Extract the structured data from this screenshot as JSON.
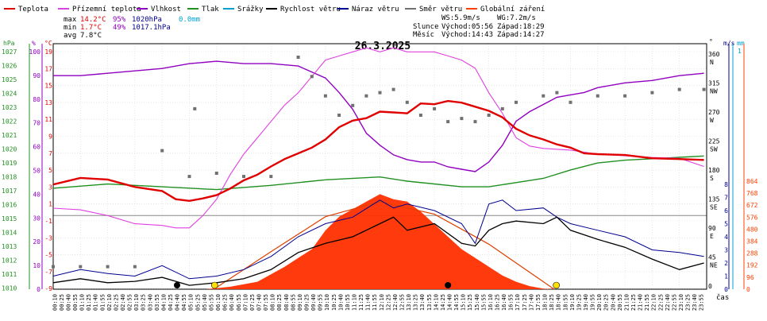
{
  "chart_data": {
    "type": "line",
    "title": "26.3.2025",
    "xlabel": "čas",
    "legend": [
      {
        "label": "Teplota",
        "color": "#e00000"
      },
      {
        "label": "Přízemní teplota",
        "color": "#e040e0"
      },
      {
        "label": "Vlhkost",
        "color": "#9000c0"
      },
      {
        "label": "Tlak",
        "color": "#209020"
      },
      {
        "label": "Srážky",
        "color": "#00a0d0"
      },
      {
        "label": "Rychlost větru",
        "color": "#000000"
      },
      {
        "label": "Náraz větru",
        "color": "#000090"
      },
      {
        "label": "Směr větru",
        "color": "#707070"
      },
      {
        "label": "Globální záření",
        "color": "#ff4000"
      }
    ],
    "stats": {
      "rows": [
        {
          "label": "max",
          "temp": "14.2°C",
          "hum": "95%",
          "press": "1020hPa",
          "rain": "0.0mm"
        },
        {
          "label": "min",
          "temp": "1.7°C",
          "hum": "49%",
          "press": "1017.1hPa",
          "rain": ""
        },
        {
          "label": "avg",
          "temp": "7.8°C",
          "hum": "",
          "press": "",
          "rain": ""
        }
      ],
      "ws": "WS:5.9m/s",
      "wg": "WG:7.2m/s",
      "sun_label": "Slunce",
      "sun_rise": "Východ:05:56",
      "sun_set": "Západ:18:29",
      "moon_label": "Měsíc",
      "moon_rise": "Východ:14:43",
      "moon_set": "Západ:14:27"
    },
    "axes_left": {
      "hpa": {
        "unit": "hPa",
        "ticks": [
          "1027",
          "1026",
          "1025",
          "1024",
          "1023",
          "1022",
          "1021",
          "1020",
          "1019",
          "1018",
          "1017",
          "1016",
          "1015",
          "1014",
          "1013",
          "1012",
          "1011",
          "1010"
        ]
      },
      "pct": {
        "unit": "%",
        "ticks": [
          "100",
          "90",
          "80",
          "70",
          "60",
          "50",
          "40",
          "30",
          "20",
          "10",
          "0"
        ]
      },
      "degc": {
        "unit": "°C",
        "ticks": [
          "19",
          "17",
          "15",
          "13",
          "11",
          "9",
          "7",
          "5",
          "3",
          "1",
          "-1",
          "-3",
          "-5",
          "-7",
          "-9"
        ]
      }
    },
    "axes_right": {
      "dir": {
        "unit": "°",
        "ticks": [
          {
            "deg": "360",
            "dir": "N"
          },
          {
            "deg": "315",
            "dir": "NW"
          },
          {
            "deg": "270",
            "dir": "W"
          },
          {
            "deg": "225",
            "dir": "SW"
          },
          {
            "deg": "180",
            "dir": "S"
          },
          {
            "deg": "135",
            "dir": "SE"
          },
          {
            "deg": "90",
            "dir": "E"
          },
          {
            "deg": "45",
            "dir": "NE"
          },
          {
            "deg": "0",
            "dir": ""
          }
        ]
      },
      "ms": {
        "unit": "m/s",
        "ticks": [
          "8",
          "7",
          "6",
          "5",
          "4",
          "3",
          "2",
          "1",
          "0"
        ]
      },
      "mm": {
        "unit": "mm",
        "ticks": [
          "1"
        ]
      },
      "wm2": {
        "unit": "",
        "ticks": [
          "864",
          "768",
          "672",
          "576",
          "480",
          "384",
          "288",
          "192",
          "96",
          "0"
        ]
      }
    },
    "x_ticks": [
      "00:10",
      "00:25",
      "00:40",
      "00:55",
      "01:10",
      "01:25",
      "01:40",
      "01:55",
      "02:10",
      "02:25",
      "02:40",
      "02:55",
      "03:10",
      "03:25",
      "03:40",
      "03:55",
      "04:10",
      "04:25",
      "04:40",
      "04:55",
      "05:10",
      "05:25",
      "05:40",
      "05:55",
      "06:10",
      "06:25",
      "06:40",
      "06:55",
      "07:10",
      "07:25",
      "07:40",
      "07:55",
      "08:10",
      "08:25",
      "08:40",
      "08:55",
      "09:10",
      "09:25",
      "09:40",
      "09:55",
      "10:10",
      "10:25",
      "10:40",
      "10:55",
      "11:10",
      "11:25",
      "11:40",
      "11:55",
      "12:10",
      "12:25",
      "12:40",
      "12:55",
      "13:10",
      "13:25",
      "13:40",
      "13:55",
      "14:10",
      "14:25",
      "14:40",
      "14:55",
      "15:10",
      "15:25",
      "15:40",
      "15:55",
      "16:10",
      "16:25",
      "16:40",
      "16:55",
      "17:10",
      "17:25",
      "17:40",
      "17:55",
      "18:10",
      "18:25",
      "18:40",
      "18:55",
      "19:10",
      "19:25",
      "19:40",
      "19:55",
      "20:10",
      "20:25",
      "20:40",
      "20:55",
      "21:10",
      "21:25",
      "21:40",
      "21:55",
      "22:10",
      "22:25",
      "22:40",
      "22:55",
      "23:10",
      "23:25",
      "23:40",
      "23:55"
    ],
    "series": {
      "temperature_c": [
        [
          0,
          3.8
        ],
        [
          1,
          4.6
        ],
        [
          2,
          4.4
        ],
        [
          3,
          3.5
        ],
        [
          4,
          3.0
        ],
        [
          4.5,
          2.0
        ],
        [
          5,
          1.8
        ],
        [
          5.5,
          2.1
        ],
        [
          6,
          2.5
        ],
        [
          6.5,
          3.3
        ],
        [
          7,
          4.3
        ],
        [
          7.5,
          5.0
        ],
        [
          8,
          6.0
        ],
        [
          8.5,
          6.9
        ],
        [
          9,
          7.6
        ],
        [
          9.5,
          8.3
        ],
        [
          10,
          9.3
        ],
        [
          10.5,
          10.8
        ],
        [
          11,
          11.6
        ],
        [
          11.5,
          11.9
        ],
        [
          12,
          12.7
        ],
        [
          12.5,
          12.6
        ],
        [
          13,
          12.5
        ],
        [
          13.5,
          13.7
        ],
        [
          14,
          13.6
        ],
        [
          14.5,
          14.0
        ],
        [
          15,
          13.8
        ],
        [
          15.5,
          13.3
        ],
        [
          16,
          12.8
        ],
        [
          16.5,
          12.0
        ],
        [
          17,
          10.6
        ],
        [
          17.5,
          9.8
        ],
        [
          18,
          9.3
        ],
        [
          18.5,
          8.7
        ],
        [
          19,
          8.3
        ],
        [
          19.5,
          7.6
        ],
        [
          20,
          7.5
        ],
        [
          21,
          7.4
        ],
        [
          22,
          7.0
        ],
        [
          23,
          6.9
        ],
        [
          23.9,
          6.8
        ]
      ],
      "ground_temp_c": [
        [
          0,
          0.9
        ],
        [
          1,
          0.7
        ],
        [
          2,
          0.0
        ],
        [
          3,
          -1.0
        ],
        [
          4,
          -1.2
        ],
        [
          4.5,
          -1.5
        ],
        [
          5,
          -1.5
        ],
        [
          5.5,
          0.0
        ],
        [
          6,
          2.0
        ],
        [
          6.5,
          5.0
        ],
        [
          7,
          7.5
        ],
        [
          7.5,
          9.5
        ],
        [
          8,
          11.5
        ],
        [
          8.5,
          13.5
        ],
        [
          9,
          15.0
        ],
        [
          9.5,
          17.0
        ],
        [
          10,
          19.0
        ],
        [
          10.5,
          19.5
        ],
        [
          11,
          20.0
        ],
        [
          11.5,
          20.5
        ],
        [
          12,
          20.0
        ],
        [
          12.5,
          20.5
        ],
        [
          13,
          20.0
        ],
        [
          13.5,
          20.0
        ],
        [
          14,
          20.0
        ],
        [
          14.5,
          19.5
        ],
        [
          15,
          19.0
        ],
        [
          15.5,
          18.0
        ],
        [
          16,
          15.0
        ],
        [
          16.5,
          12.5
        ],
        [
          17,
          9.5
        ],
        [
          17.5,
          8.5
        ],
        [
          18,
          8.2
        ],
        [
          19,
          8.0
        ],
        [
          20,
          7.5
        ],
        [
          21,
          7.3
        ],
        [
          22,
          7.1
        ],
        [
          23,
          7.0
        ],
        [
          23.9,
          6.0
        ]
      ],
      "humidity_pct": [
        [
          0,
          89
        ],
        [
          1,
          89
        ],
        [
          2,
          90
        ],
        [
          3,
          91
        ],
        [
          4,
          92
        ],
        [
          5,
          94
        ],
        [
          6,
          95
        ],
        [
          7,
          94
        ],
        [
          8,
          94
        ],
        [
          9,
          93
        ],
        [
          10,
          88
        ],
        [
          10.5,
          82
        ],
        [
          11,
          75
        ],
        [
          11.5,
          65
        ],
        [
          12,
          60
        ],
        [
          12.5,
          56
        ],
        [
          13,
          54
        ],
        [
          13.5,
          53
        ],
        [
          14,
          53
        ],
        [
          14.5,
          51
        ],
        [
          15,
          50
        ],
        [
          15.5,
          49
        ],
        [
          16,
          53
        ],
        [
          16.5,
          60
        ],
        [
          17,
          70
        ],
        [
          17.5,
          74
        ],
        [
          18,
          77
        ],
        [
          18.5,
          80
        ],
        [
          19,
          81
        ],
        [
          19.5,
          82
        ],
        [
          20,
          84
        ],
        [
          21,
          86
        ],
        [
          22,
          87
        ],
        [
          23,
          89
        ],
        [
          23.9,
          90
        ]
      ],
      "pressure_hpa": [
        [
          0,
          1017.2
        ],
        [
          2,
          1017.5
        ],
        [
          4,
          1017.3
        ],
        [
          6,
          1017.1
        ],
        [
          8,
          1017.4
        ],
        [
          10,
          1017.8
        ],
        [
          12,
          1018.0
        ],
        [
          13,
          1017.7
        ],
        [
          15,
          1017.3
        ],
        [
          16,
          1017.3
        ],
        [
          17,
          1017.6
        ],
        [
          18,
          1017.9
        ],
        [
          19,
          1018.5
        ],
        [
          20,
          1019.0
        ],
        [
          21,
          1019.2
        ],
        [
          22,
          1019.3
        ],
        [
          23,
          1019.4
        ],
        [
          23.9,
          1019.5
        ]
      ],
      "radiation_wm2": [
        [
          5.6,
          0
        ],
        [
          6.5,
          20
        ],
        [
          7.5,
          60
        ],
        [
          8.5,
          180
        ],
        [
          9.5,
          320
        ],
        [
          10,
          470
        ],
        [
          10.5,
          580
        ],
        [
          11,
          640
        ],
        [
          11.5,
          700
        ],
        [
          12,
          760
        ],
        [
          12.5,
          720
        ],
        [
          13,
          700
        ],
        [
          13.5,
          620
        ],
        [
          14,
          520
        ],
        [
          14.5,
          420
        ],
        [
          15,
          320
        ],
        [
          15.5,
          250
        ],
        [
          16,
          180
        ],
        [
          16.5,
          110
        ],
        [
          17,
          60
        ],
        [
          17.5,
          25
        ],
        [
          18,
          5
        ],
        [
          18.4,
          0
        ]
      ],
      "clear_sky_wm2": [
        [
          5.9,
          0
        ],
        [
          8,
          300
        ],
        [
          10,
          580
        ],
        [
          12,
          700
        ],
        [
          14,
          600
        ],
        [
          16,
          360
        ],
        [
          18.4,
          0
        ]
      ],
      "wind_speed_ms": [
        [
          0,
          0.5
        ],
        [
          1,
          0.8
        ],
        [
          2,
          0.5
        ],
        [
          3,
          0.6
        ],
        [
          4,
          0.9
        ],
        [
          5,
          0.3
        ],
        [
          6,
          0.5
        ],
        [
          7,
          0.8
        ],
        [
          8,
          1.5
        ],
        [
          9,
          2.8
        ],
        [
          10,
          3.5
        ],
        [
          11,
          4.0
        ],
        [
          12,
          5.0
        ],
        [
          12.5,
          5.5
        ],
        [
          13,
          4.5
        ],
        [
          14,
          5.0
        ],
        [
          15,
          3.5
        ],
        [
          15.5,
          3.3
        ],
        [
          16,
          4.5
        ],
        [
          16.5,
          5.0
        ],
        [
          17,
          5.2
        ],
        [
          18,
          5.0
        ],
        [
          18.5,
          5.5
        ],
        [
          19,
          4.5
        ],
        [
          20,
          3.8
        ],
        [
          21,
          3.2
        ],
        [
          22,
          2.3
        ],
        [
          23,
          1.5
        ],
        [
          23.9,
          2.0
        ]
      ],
      "wind_gust_ms": [
        [
          0,
          1.0
        ],
        [
          1,
          1.5
        ],
        [
          2,
          1.2
        ],
        [
          3,
          1.0
        ],
        [
          4,
          1.8
        ],
        [
          5,
          0.8
        ],
        [
          6,
          1.0
        ],
        [
          7,
          1.5
        ],
        [
          8,
          2.5
        ],
        [
          9,
          4.0
        ],
        [
          10,
          5.0
        ],
        [
          11,
          5.5
        ],
        [
          12,
          6.8
        ],
        [
          12.5,
          6.2
        ],
        [
          13,
          6.5
        ],
        [
          14,
          6.0
        ],
        [
          15,
          5.0
        ],
        [
          15.5,
          3.5
        ],
        [
          16,
          6.5
        ],
        [
          16.5,
          6.8
        ],
        [
          17,
          6.0
        ],
        [
          18,
          6.2
        ],
        [
          18.5,
          5.5
        ],
        [
          19,
          5.0
        ],
        [
          20,
          4.5
        ],
        [
          21,
          4.0
        ],
        [
          22,
          3.0
        ],
        [
          23,
          2.8
        ],
        [
          23.9,
          2.5
        ]
      ],
      "wind_dir_deg": [
        [
          0,
          35
        ],
        [
          1,
          35
        ],
        [
          2,
          35
        ],
        [
          3,
          35
        ],
        [
          4,
          215
        ],
        [
          5,
          175
        ],
        [
          5.2,
          280
        ],
        [
          6,
          180
        ],
        [
          7,
          175
        ],
        [
          8,
          175
        ],
        [
          9,
          360
        ],
        [
          9.5,
          330
        ],
        [
          10,
          300
        ],
        [
          10.5,
          270
        ],
        [
          11,
          285
        ],
        [
          11.5,
          300
        ],
        [
          12,
          305
        ],
        [
          12.5,
          310
        ],
        [
          13,
          290
        ],
        [
          13.5,
          270
        ],
        [
          14,
          280
        ],
        [
          14.5,
          260
        ],
        [
          15,
          265
        ],
        [
          15.5,
          260
        ],
        [
          16,
          270
        ],
        [
          16.5,
          280
        ],
        [
          17,
          290
        ],
        [
          18,
          300
        ],
        [
          18.5,
          305
        ],
        [
          19,
          290
        ],
        [
          20,
          300
        ],
        [
          21,
          300
        ],
        [
          22,
          305
        ],
        [
          23,
          310
        ],
        [
          23.9,
          310
        ]
      ]
    },
    "markers": {
      "moon_times_h": [
        4.55,
        14.5
      ],
      "sun_times_h": [
        5.93,
        18.48
      ]
    }
  }
}
